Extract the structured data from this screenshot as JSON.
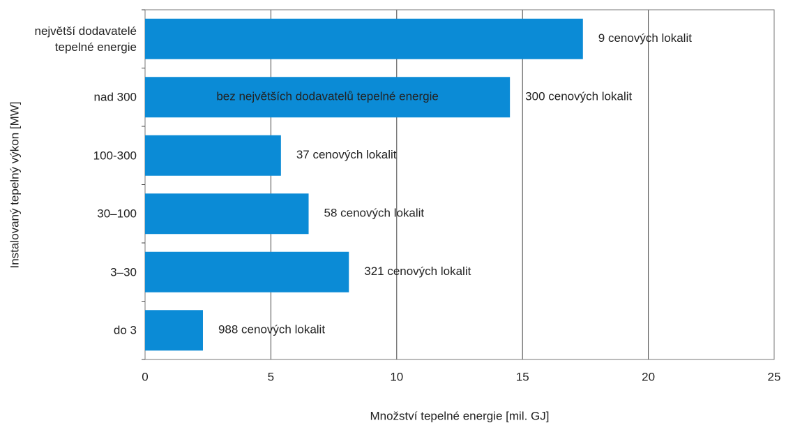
{
  "chart_data": {
    "type": "bar",
    "orientation": "horizontal",
    "xlabel": "Množství tepelné energie [mil. GJ]",
    "ylabel": "Instalovaný tepelný výkon [MW]",
    "categories": [
      "největší dodavatelé tepelné energie",
      "nad 300",
      "100-300",
      "30–100",
      "3–30",
      "do 3"
    ],
    "values": [
      17.4,
      14.5,
      5.4,
      6.5,
      8.1,
      2.3
    ],
    "bar_annotations": [
      "9 cenových lokalit",
      "300 cenových lokalit",
      "37 cenových lokalit",
      "58 cenových lokalit",
      "321 cenových lokalit",
      "988 cenových lokalit"
    ],
    "inside_annotation": {
      "index": 1,
      "text": "bez největších dodavatelů tepelné energie"
    },
    "color": "#0b8bd6",
    "xlim": [
      0,
      25
    ],
    "xticks": [
      0,
      5,
      10,
      15,
      20,
      25
    ],
    "grid": true
  }
}
